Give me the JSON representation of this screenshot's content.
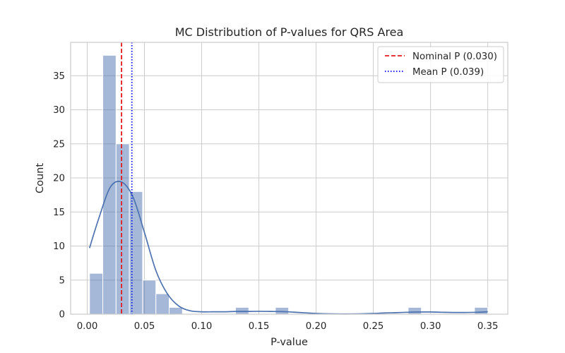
{
  "chart_data": {
    "type": "bar",
    "title": "MC Distribution of P-values for QRS Area",
    "xlabel": "P-value",
    "ylabel": "Count",
    "xlim": [
      -0.0145,
      0.3675
    ],
    "ylim": [
      0,
      39.9
    ],
    "xticks": [
      0.0,
      0.05,
      0.1,
      0.15,
      0.2,
      0.25,
      0.3,
      0.35
    ],
    "xtick_labels": [
      "0.00",
      "0.05",
      "0.10",
      "0.15",
      "0.20",
      "0.25",
      "0.30",
      "0.35"
    ],
    "yticks": [
      0,
      5,
      10,
      15,
      20,
      25,
      30,
      35
    ],
    "ytick_labels": [
      "0",
      "5",
      "10",
      "15",
      "20",
      "25",
      "30",
      "35"
    ],
    "grid": true,
    "histogram": {
      "bin_edges": [
        0.002,
        0.0136,
        0.0252,
        0.0368,
        0.0484,
        0.06,
        0.0716,
        0.0832,
        0.0948,
        0.1064,
        0.118,
        0.1296,
        0.1412,
        0.1528,
        0.1644,
        0.176,
        0.1876,
        0.1992,
        0.2108,
        0.2224,
        0.234,
        0.2456,
        0.2572,
        0.2688,
        0.2804,
        0.292,
        0.3036,
        0.3152,
        0.3268,
        0.3384,
        0.35
      ],
      "counts": [
        6,
        38,
        25,
        18,
        5,
        3,
        1,
        0,
        0,
        0,
        0,
        1,
        0,
        0,
        1,
        0,
        0,
        0,
        0,
        0,
        0,
        0,
        0,
        0,
        1,
        0,
        0,
        0,
        0,
        1
      ],
      "color": "#4c72b0"
    },
    "kde": {
      "color": "#4c72b0",
      "x": [
        0.002,
        0.01,
        0.02,
        0.03,
        0.04,
        0.05,
        0.06,
        0.07,
        0.08,
        0.09,
        0.1,
        0.11,
        0.12,
        0.13,
        0.14,
        0.15,
        0.16,
        0.17,
        0.18,
        0.19,
        0.2,
        0.21,
        0.22,
        0.23,
        0.24,
        0.25,
        0.26,
        0.27,
        0.28,
        0.29,
        0.3,
        0.31,
        0.32,
        0.33,
        0.34,
        0.35
      ],
      "y": [
        9.7,
        14.0,
        18.6,
        19.4,
        17.2,
        12.0,
        6.4,
        3.0,
        1.2,
        0.5,
        0.35,
        0.35,
        0.35,
        0.4,
        0.4,
        0.42,
        0.4,
        0.38,
        0.3,
        0.2,
        0.1,
        0.05,
        0.03,
        0.03,
        0.05,
        0.1,
        0.18,
        0.22,
        0.28,
        0.32,
        0.32,
        0.28,
        0.25,
        0.25,
        0.28,
        0.35
      ]
    },
    "vlines": [
      {
        "name": "Nominal P (0.030)",
        "x": 0.03,
        "color": "#e41a1c",
        "style": "dashed"
      },
      {
        "name": "Mean P (0.039)",
        "x": 0.039,
        "color": "#0000ff",
        "style": "dotted"
      }
    ],
    "legend": {
      "placement": "top-right"
    }
  }
}
